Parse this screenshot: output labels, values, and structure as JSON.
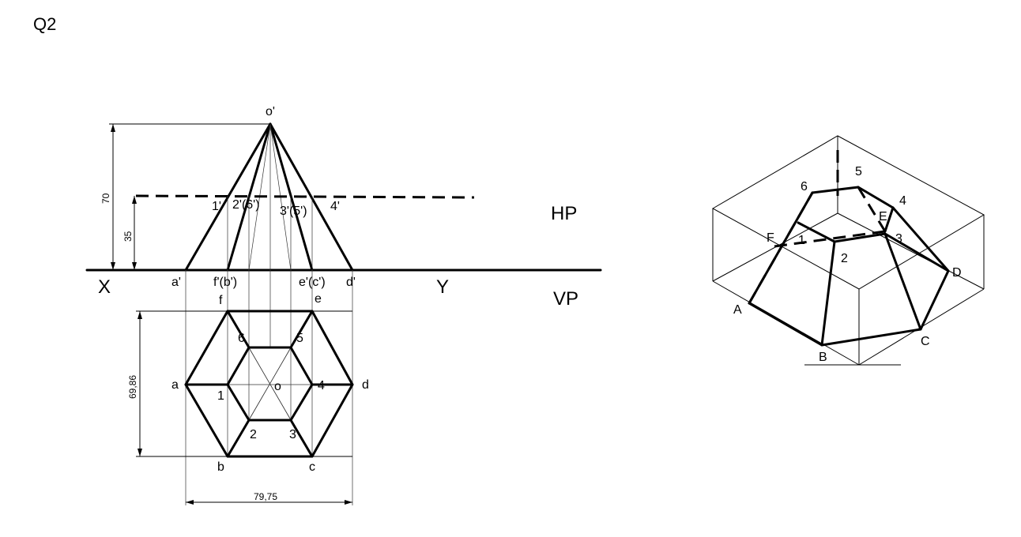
{
  "question_label": "Q2",
  "front_view": {
    "apex": "o'",
    "cut_points": [
      "1'",
      "2'(6')",
      "3'(5')",
      "4'"
    ],
    "base_points": [
      "a'",
      "f'(b')",
      "e'(c')",
      "d'"
    ]
  },
  "reference_line": {
    "left": "X",
    "right": "Y",
    "hp": "HP",
    "vp": "VP"
  },
  "top_view": {
    "outer": [
      "f",
      "e",
      "a",
      "d",
      "b",
      "c"
    ],
    "inner": [
      "6",
      "5",
      "1",
      "4",
      "2",
      "3"
    ],
    "center": "o"
  },
  "dimensions": {
    "height": "70",
    "cut_height": "35",
    "depth": "69,86",
    "width": "79,75"
  },
  "isometric": {
    "top": [
      "6",
      "5",
      "4",
      "E",
      "F",
      "1",
      "2",
      "3"
    ],
    "base": [
      "A",
      "B",
      "C",
      "D"
    ]
  }
}
